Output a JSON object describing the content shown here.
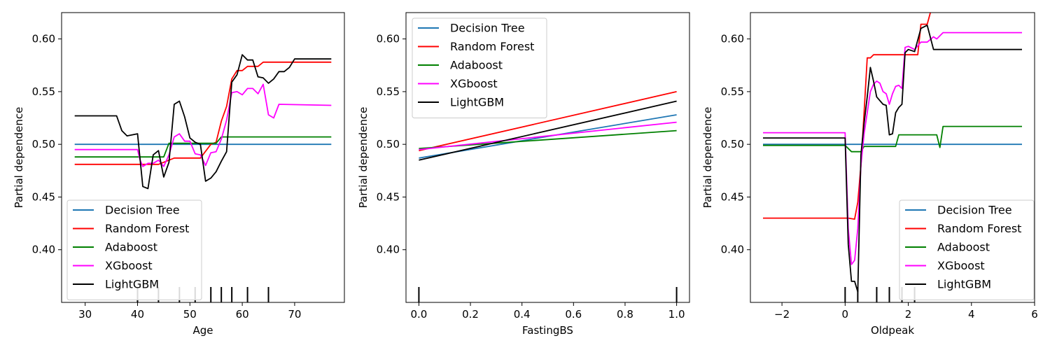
{
  "chart_data": [
    {
      "type": "line",
      "xlabel": "Age",
      "ylabel": "Partial dependence",
      "xlim": [
        25.5,
        79.5
      ],
      "ylim": [
        0.35,
        0.625
      ],
      "xticks": [
        30,
        40,
        50,
        60,
        70
      ],
      "yticks": [
        0.4,
        0.45,
        0.5,
        0.55,
        0.6
      ],
      "xtick_labels": [
        "30",
        "40",
        "50",
        "60",
        "70"
      ],
      "ytick_labels": [
        "0.40",
        "0.45",
        "0.50",
        "0.55",
        "0.60"
      ],
      "legend_position": "lower-left",
      "rug": [
        40,
        44,
        48,
        51,
        54,
        56,
        58,
        61,
        65
      ],
      "series": [
        {
          "name": "Decision Tree",
          "color": "#1f77b4",
          "x": [
            28,
            77
          ],
          "y": [
            0.5,
            0.5
          ]
        },
        {
          "name": "Random Forest",
          "color": "#ff0000",
          "x": [
            28,
            40,
            44,
            45,
            47,
            52,
            54,
            55,
            56,
            57,
            58,
            59,
            60,
            61,
            63,
            64,
            65,
            77
          ],
          "y": [
            0.481,
            0.481,
            0.481,
            0.483,
            0.487,
            0.487,
            0.5,
            0.502,
            0.522,
            0.536,
            0.562,
            0.57,
            0.57,
            0.574,
            0.574,
            0.578,
            0.578,
            0.578
          ]
        },
        {
          "name": "Adaboost",
          "color": "#008000",
          "x": [
            28,
            45,
            46,
            55,
            56,
            77
          ],
          "y": [
            0.488,
            0.488,
            0.501,
            0.501,
            0.507,
            0.507
          ]
        },
        {
          "name": "XGboost",
          "color": "#ff00ff",
          "x": [
            28,
            40,
            40.5,
            41,
            42,
            43,
            44,
            45,
            46,
            47,
            48,
            49,
            50,
            51,
            52,
            53,
            54,
            55,
            56,
            57,
            58,
            59,
            60,
            61,
            62,
            63,
            64,
            65,
            66,
            67,
            77
          ],
          "y": [
            0.495,
            0.495,
            0.485,
            0.479,
            0.482,
            0.482,
            0.485,
            0.479,
            0.49,
            0.507,
            0.51,
            0.503,
            0.503,
            0.491,
            0.49,
            0.48,
            0.492,
            0.493,
            0.505,
            0.523,
            0.549,
            0.55,
            0.547,
            0.553,
            0.553,
            0.548,
            0.557,
            0.528,
            0.525,
            0.538,
            0.537
          ]
        },
        {
          "name": "LightGBM",
          "color": "#000000",
          "x": [
            28,
            36,
            37,
            38,
            39,
            40,
            41,
            42,
            43,
            44,
            45,
            46,
            47,
            48,
            49,
            50,
            51,
            52,
            53,
            54,
            55,
            56,
            57,
            58,
            59,
            60,
            61,
            62,
            63,
            64,
            65,
            66,
            67,
            68,
            69,
            70,
            77
          ],
          "y": [
            0.527,
            0.527,
            0.513,
            0.508,
            0.509,
            0.51,
            0.46,
            0.458,
            0.49,
            0.494,
            0.469,
            0.483,
            0.538,
            0.541,
            0.526,
            0.506,
            0.502,
            0.5,
            0.465,
            0.468,
            0.474,
            0.484,
            0.493,
            0.559,
            0.566,
            0.585,
            0.58,
            0.58,
            0.564,
            0.563,
            0.558,
            0.562,
            0.569,
            0.569,
            0.573,
            0.581,
            0.581
          ]
        }
      ]
    },
    {
      "type": "line",
      "xlabel": "FastingBS",
      "ylabel": "Partial dependence",
      "xlim": [
        -0.05,
        1.05
      ],
      "ylim": [
        0.35,
        0.625
      ],
      "xticks": [
        0.0,
        0.2,
        0.4,
        0.6,
        0.8,
        1.0
      ],
      "yticks": [
        0.4,
        0.45,
        0.5,
        0.55,
        0.6
      ],
      "xtick_labels": [
        "0.0",
        "0.2",
        "0.4",
        "0.6",
        "0.8",
        "1.0"
      ],
      "ytick_labels": [
        "0.40",
        "0.45",
        "0.50",
        "0.55",
        "0.60"
      ],
      "legend_position": "upper-left",
      "rug": [
        0,
        1
      ],
      "series": [
        {
          "name": "Decision Tree",
          "color": "#1f77b4",
          "x": [
            0,
            1
          ],
          "y": [
            0.487,
            0.528
          ]
        },
        {
          "name": "Random Forest",
          "color": "#ff0000",
          "x": [
            0,
            1
          ],
          "y": [
            0.494,
            0.55
          ]
        },
        {
          "name": "Adaboost",
          "color": "#008000",
          "x": [
            0,
            1
          ],
          "y": [
            0.496,
            0.513
          ]
        },
        {
          "name": "XGboost",
          "color": "#ff00ff",
          "x": [
            0,
            1
          ],
          "y": [
            0.495,
            0.521
          ]
        },
        {
          "name": "LightGBM",
          "color": "#000000",
          "x": [
            0,
            1
          ],
          "y": [
            0.485,
            0.541
          ]
        }
      ]
    },
    {
      "type": "line",
      "xlabel": "Oldpeak",
      "ylabel": "Partial dependence",
      "xlim": [
        -3.0,
        6.0
      ],
      "ylim": [
        0.35,
        0.625
      ],
      "xticks": [
        -2,
        0,
        2,
        4,
        6
      ],
      "yticks": [
        0.4,
        0.45,
        0.5,
        0.55,
        0.6
      ],
      "xtick_labels": [
        "−2",
        "0",
        "2",
        "4",
        "6"
      ],
      "ytick_labels": [
        "0.40",
        "0.45",
        "0.50",
        "0.55",
        "0.60"
      ],
      "legend_position": "lower-right",
      "rug": [
        0.0,
        0.4,
        1.0,
        1.4,
        1.8,
        2.2
      ],
      "series": [
        {
          "name": "Decision Tree",
          "color": "#1f77b4",
          "x": [
            -2.6,
            5.6
          ],
          "y": [
            0.5,
            0.5
          ]
        },
        {
          "name": "Random Forest",
          "color": "#ff0000",
          "x": [
            -2.6,
            0.0,
            0.1,
            0.3,
            0.4,
            0.5,
            0.6,
            0.7,
            0.8,
            0.9,
            1.0,
            2.3,
            2.4,
            2.6,
            2.7
          ],
          "y": [
            0.43,
            0.43,
            0.43,
            0.429,
            0.445,
            0.48,
            0.53,
            0.582,
            0.582,
            0.585,
            0.585,
            0.585,
            0.614,
            0.614,
            0.625
          ]
        },
        {
          "name": "Adaboost",
          "color": "#008000",
          "x": [
            -2.6,
            0.0,
            0.2,
            0.3,
            0.5,
            0.6,
            1.6,
            1.7,
            2.9,
            3.0,
            3.1,
            5.6
          ],
          "y": [
            0.499,
            0.499,
            0.493,
            0.493,
            0.493,
            0.498,
            0.498,
            0.509,
            0.509,
            0.497,
            0.517,
            0.517
          ]
        },
        {
          "name": "XGboost",
          "color": "#ff00ff",
          "x": [
            -2.6,
            0.0,
            0.1,
            0.2,
            0.3,
            0.4,
            0.5,
            0.6,
            0.7,
            0.8,
            0.9,
            1.0,
            1.1,
            1.2,
            1.3,
            1.4,
            1.5,
            1.6,
            1.7,
            1.8,
            1.9,
            2.0,
            2.2,
            2.4,
            2.6,
            2.8,
            2.9,
            3.1,
            5.6
          ],
          "y": [
            0.511,
            0.511,
            0.42,
            0.386,
            0.39,
            0.42,
            0.48,
            0.51,
            0.53,
            0.55,
            0.557,
            0.56,
            0.558,
            0.55,
            0.548,
            0.538,
            0.548,
            0.555,
            0.556,
            0.553,
            0.592,
            0.593,
            0.59,
            0.597,
            0.597,
            0.602,
            0.6,
            0.606,
            0.606
          ]
        },
        {
          "name": "LightGBM",
          "color": "#000000",
          "x": [
            -2.6,
            0.0,
            0.1,
            0.2,
            0.3,
            0.4,
            0.5,
            0.6,
            0.7,
            0.8,
            0.9,
            1.0,
            1.2,
            1.3,
            1.4,
            1.5,
            1.6,
            1.7,
            1.8,
            1.9,
            2.0,
            2.2,
            2.4,
            2.6,
            2.8,
            2.9,
            5.6
          ],
          "y": [
            0.506,
            0.506,
            0.405,
            0.37,
            0.37,
            0.36,
            0.49,
            0.52,
            0.545,
            0.573,
            0.56,
            0.545,
            0.538,
            0.537,
            0.509,
            0.51,
            0.53,
            0.535,
            0.538,
            0.587,
            0.59,
            0.588,
            0.61,
            0.613,
            0.59,
            0.59,
            0.59
          ]
        }
      ]
    }
  ]
}
